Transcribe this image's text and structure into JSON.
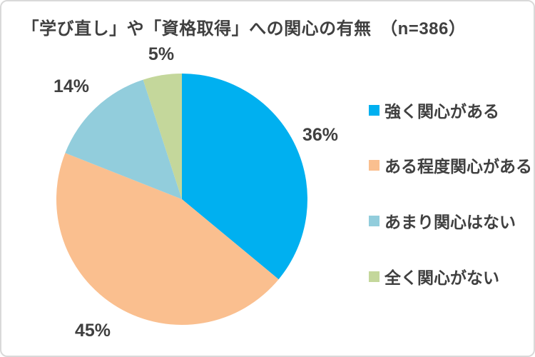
{
  "chart_data": {
    "type": "pie",
    "title": "「学び直し」や「資格取得」への関心の有無　（n=386）",
    "sample_size": 386,
    "start_angle_deg": 0,
    "direction": "clockwise",
    "legend_position": "right",
    "text_color": "#404040",
    "slices": [
      {
        "label": "強く関心がある",
        "value": 36,
        "pct_label": "36%",
        "color": "#00B0F0"
      },
      {
        "label": "ある程度関心がある",
        "value": 45,
        "pct_label": "45%",
        "color": "#FABF8F"
      },
      {
        "label": "あまり関心はない",
        "value": 14,
        "pct_label": "14%",
        "color": "#92CDDC"
      },
      {
        "label": "全く関心がない",
        "value": 5,
        "pct_label": "5%",
        "color": "#C4D79B"
      }
    ]
  }
}
